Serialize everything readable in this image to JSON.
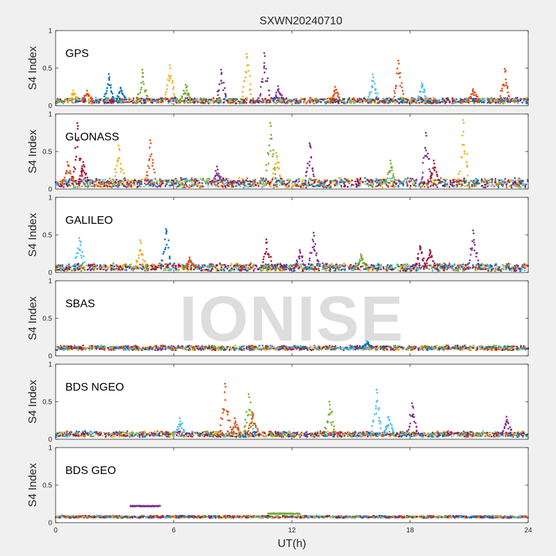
{
  "chart_data": {
    "type": "scatter",
    "title": "SXWN20240710",
    "xlabel": "UT(h)",
    "ylabel": "S4 Index",
    "watermark": "IONISE",
    "xlim": [
      0,
      24
    ],
    "ylim": [
      0,
      1
    ],
    "xticks": [
      "0",
      "6",
      "12",
      "18",
      "24"
    ],
    "yticks": [
      "0",
      "0.5",
      "1"
    ],
    "colors": [
      "#0072BD",
      "#D95319",
      "#EDB120",
      "#7E2F8E",
      "#77AC30",
      "#4DBEEE",
      "#A2142F"
    ],
    "panels": [
      {
        "label": "GPS",
        "baseline": 0.06,
        "noise": 0.03,
        "spikes": [
          {
            "x": 0.9,
            "y": 0.2,
            "c": 2
          },
          {
            "x": 1.6,
            "y": 0.2,
            "c": 1
          },
          {
            "x": 2.7,
            "y": 0.42,
            "c": 0
          },
          {
            "x": 3.3,
            "y": 0.24,
            "c": 0
          },
          {
            "x": 4.4,
            "y": 0.48,
            "c": 4
          },
          {
            "x": 5.8,
            "y": 0.54,
            "c": 2
          },
          {
            "x": 6.6,
            "y": 0.28,
            "c": 4
          },
          {
            "x": 8.4,
            "y": 0.48,
            "c": 3
          },
          {
            "x": 9.7,
            "y": 0.69,
            "c": 2
          },
          {
            "x": 10.6,
            "y": 0.7,
            "c": 3
          },
          {
            "x": 11.3,
            "y": 0.26,
            "c": 3
          },
          {
            "x": 14.2,
            "y": 0.25,
            "c": 1
          },
          {
            "x": 16.1,
            "y": 0.42,
            "c": 5
          },
          {
            "x": 17.4,
            "y": 0.6,
            "c": 1
          },
          {
            "x": 18.6,
            "y": 0.3,
            "c": 5
          },
          {
            "x": 21.2,
            "y": 0.22,
            "c": 1
          },
          {
            "x": 22.8,
            "y": 0.49,
            "c": 1
          }
        ]
      },
      {
        "label": "GLONASS",
        "baseline": 0.07,
        "noise": 0.05,
        "spikes": [
          {
            "x": 0.6,
            "y": 0.36,
            "c": 1
          },
          {
            "x": 1.1,
            "y": 0.88,
            "c": 6
          },
          {
            "x": 1.4,
            "y": 0.36,
            "c": 6
          },
          {
            "x": 3.2,
            "y": 0.58,
            "c": 2
          },
          {
            "x": 4.8,
            "y": 0.65,
            "c": 1
          },
          {
            "x": 8.2,
            "y": 0.3,
            "c": 3
          },
          {
            "x": 10.9,
            "y": 0.88,
            "c": 4
          },
          {
            "x": 11.2,
            "y": 0.48,
            "c": 2
          },
          {
            "x": 12.9,
            "y": 0.61,
            "c": 3
          },
          {
            "x": 17.0,
            "y": 0.38,
            "c": 4
          },
          {
            "x": 18.8,
            "y": 0.75,
            "c": 3
          },
          {
            "x": 19.2,
            "y": 0.38,
            "c": 6
          },
          {
            "x": 20.7,
            "y": 0.92,
            "c": 2
          }
        ]
      },
      {
        "label": "GALILEO",
        "baseline": 0.06,
        "noise": 0.04,
        "spikes": [
          {
            "x": 1.2,
            "y": 0.46,
            "c": 5
          },
          {
            "x": 4.3,
            "y": 0.43,
            "c": 2
          },
          {
            "x": 5.6,
            "y": 0.58,
            "c": 0
          },
          {
            "x": 6.8,
            "y": 0.2,
            "c": 1
          },
          {
            "x": 10.7,
            "y": 0.44,
            "c": 6
          },
          {
            "x": 12.4,
            "y": 0.3,
            "c": 3
          },
          {
            "x": 13.1,
            "y": 0.53,
            "c": 3
          },
          {
            "x": 15.5,
            "y": 0.24,
            "c": 4
          },
          {
            "x": 18.5,
            "y": 0.35,
            "c": 6
          },
          {
            "x": 19.0,
            "y": 0.3,
            "c": 6
          },
          {
            "x": 21.2,
            "y": 0.56,
            "c": 3
          }
        ]
      },
      {
        "label": "SBAS",
        "baseline": 0.1,
        "noise": 0.025,
        "spikes": [
          {
            "x": 15.8,
            "y": 0.2,
            "c": 0
          }
        ]
      },
      {
        "label": "BDS NGEO",
        "baseline": 0.06,
        "noise": 0.03,
        "spikes": [
          {
            "x": 6.3,
            "y": 0.28,
            "c": 5
          },
          {
            "x": 8.6,
            "y": 0.74,
            "c": 1
          },
          {
            "x": 9.1,
            "y": 0.28,
            "c": 1
          },
          {
            "x": 9.8,
            "y": 0.6,
            "c": 4
          },
          {
            "x": 10.0,
            "y": 0.35,
            "c": 1
          },
          {
            "x": 13.9,
            "y": 0.5,
            "c": 4
          },
          {
            "x": 16.3,
            "y": 0.66,
            "c": 5
          },
          {
            "x": 16.9,
            "y": 0.3,
            "c": 5
          },
          {
            "x": 18.1,
            "y": 0.48,
            "c": 3
          },
          {
            "x": 22.9,
            "y": 0.3,
            "c": 3
          }
        ]
      },
      {
        "label": "BDS GEO",
        "baseline": 0.075,
        "noise": 0.012,
        "segments": [
          {
            "x0": 3.8,
            "x1": 5.3,
            "y": 0.22,
            "c": 3
          },
          {
            "x0": 10.8,
            "x1": 12.4,
            "y": 0.12,
            "c": 4
          }
        ],
        "spikes": []
      }
    ]
  }
}
